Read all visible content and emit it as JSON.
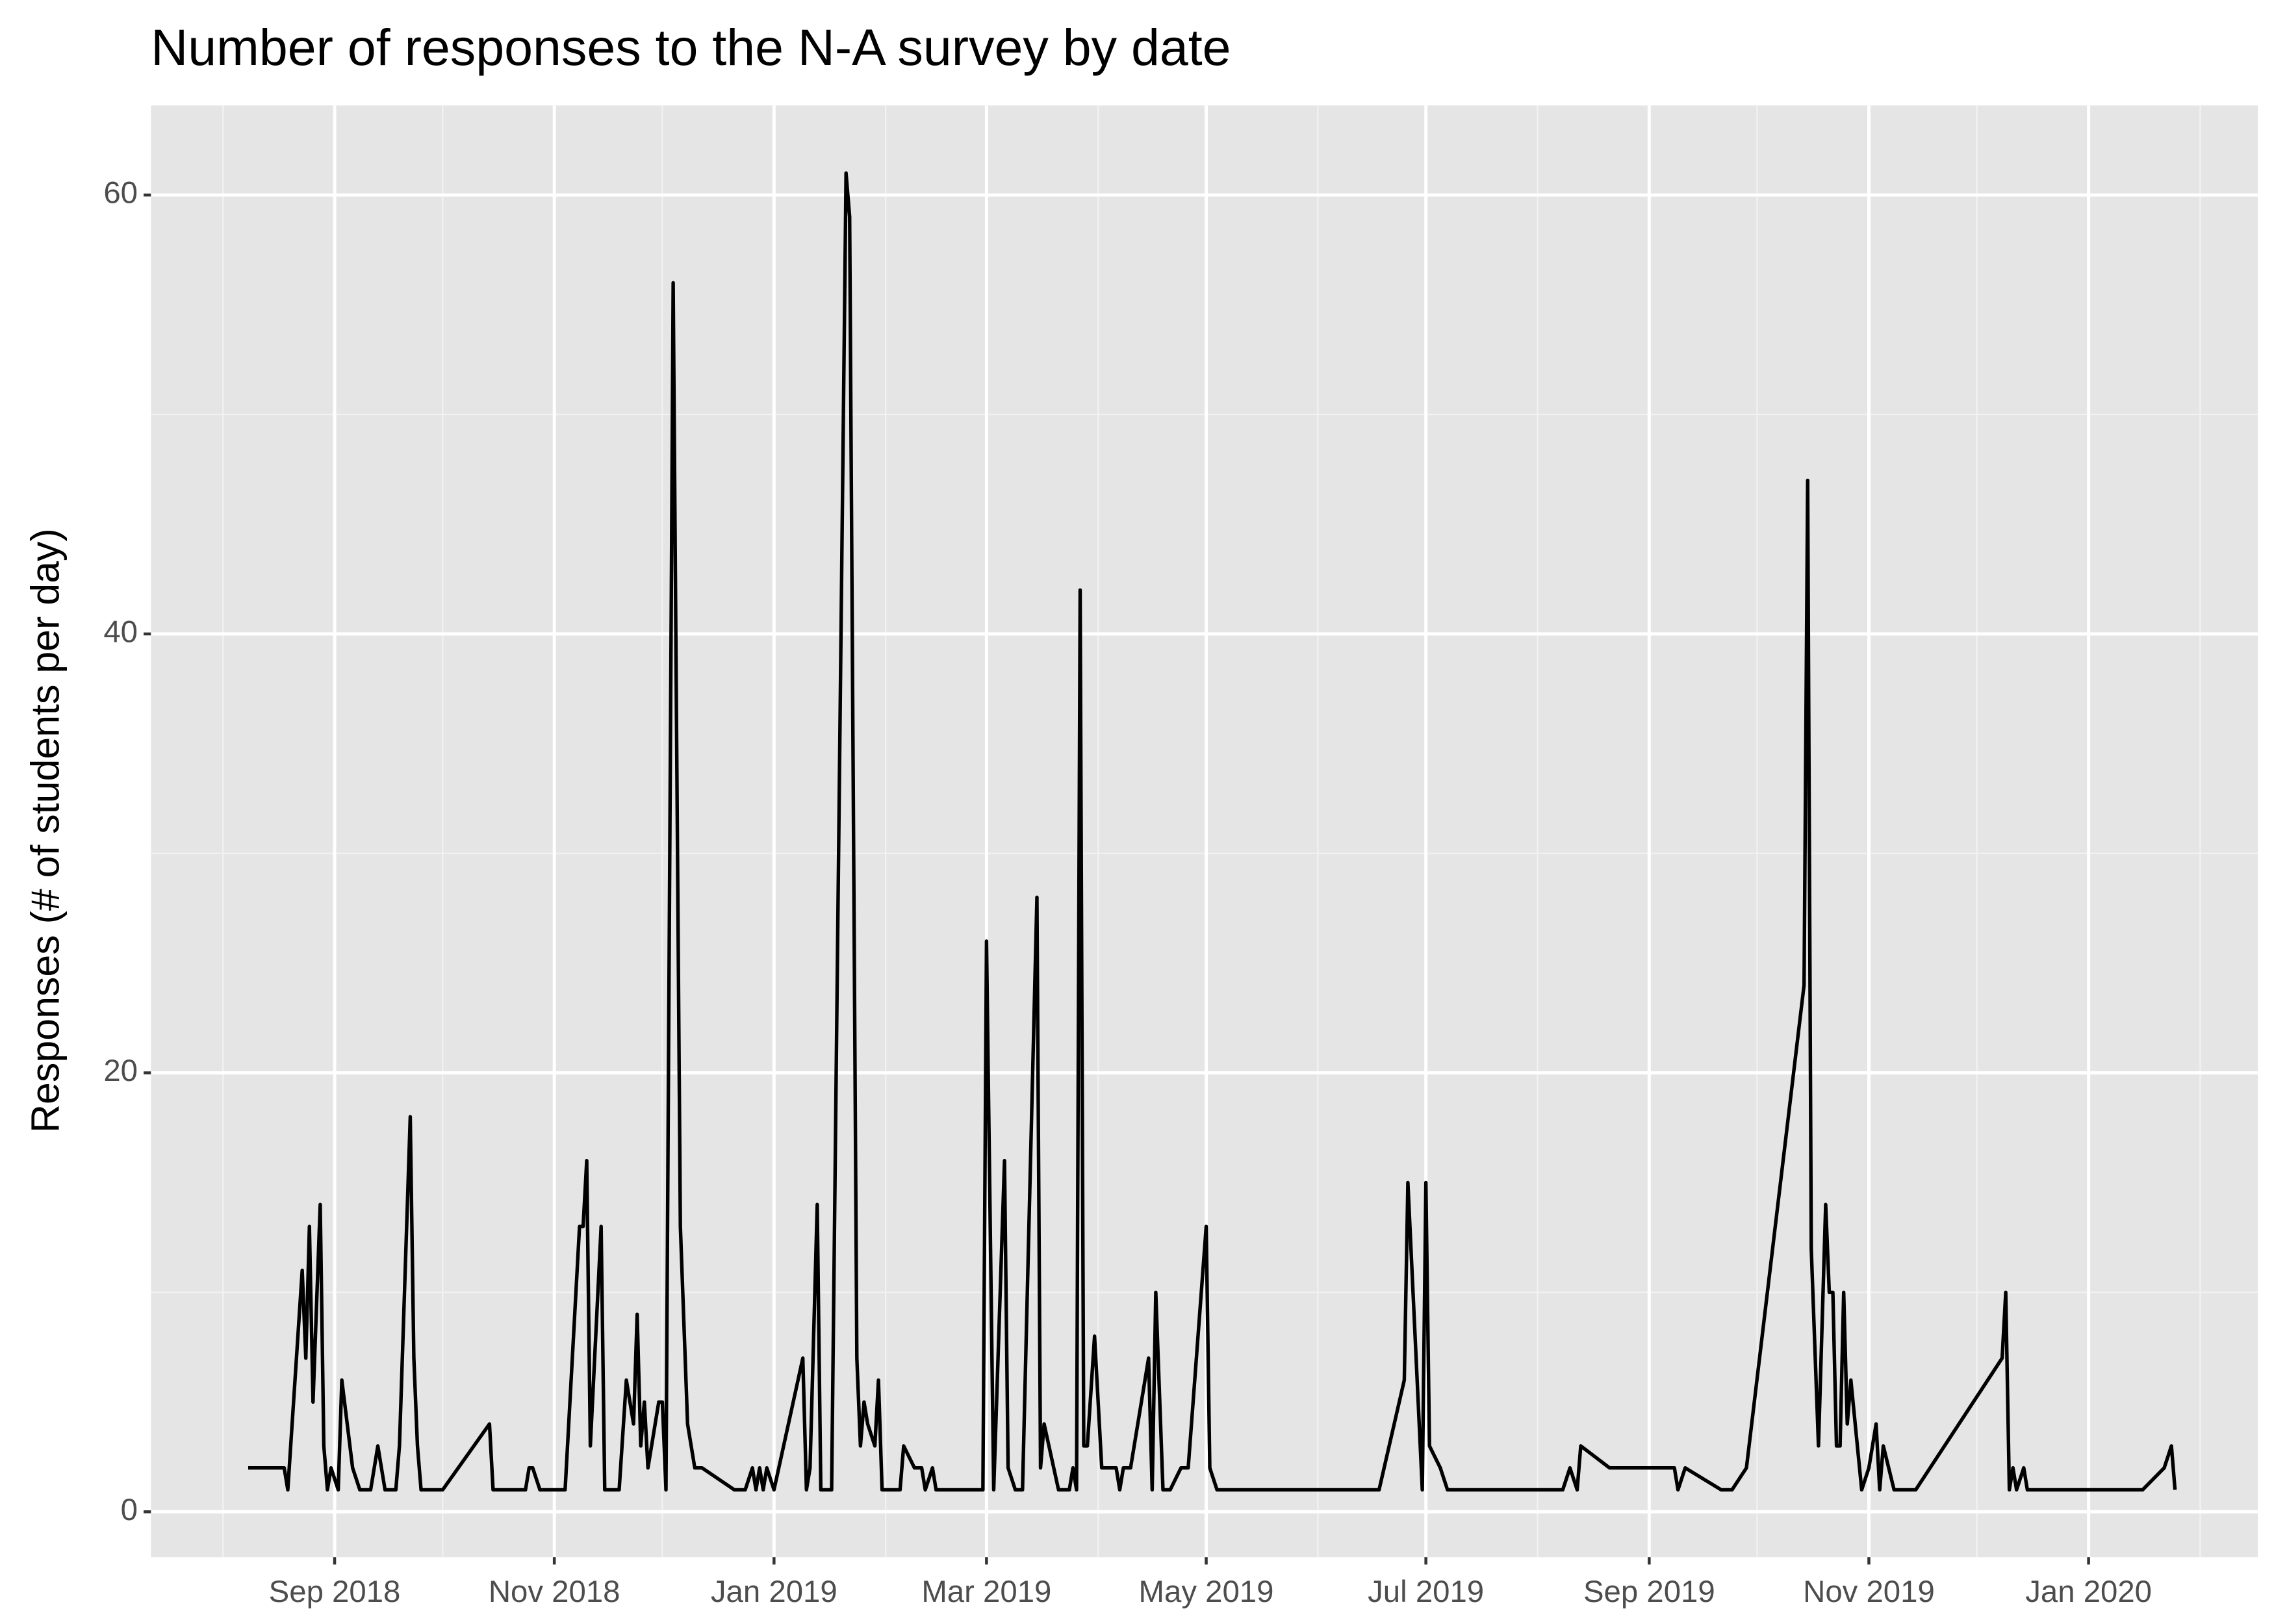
{
  "chart_data": {
    "type": "line",
    "title": "Number of responses to the N-A survey by date",
    "y_label": "Responses (# of students per day)",
    "color": "#000000",
    "background": "#e5e5e5",
    "grid": true,
    "x": [
      "2018-08-08",
      "2018-08-18",
      "2018-08-19",
      "2018-08-23",
      "2018-08-24",
      "2018-08-25",
      "2018-08-26",
      "2018-08-28",
      "2018-08-29",
      "2018-08-30",
      "2018-08-31",
      "2018-09-02",
      "2018-09-03",
      "2018-09-06",
      "2018-09-08",
      "2018-09-11",
      "2018-09-13",
      "2018-09-15",
      "2018-09-18",
      "2018-09-19",
      "2018-09-22",
      "2018-09-23",
      "2018-09-24",
      "2018-09-25",
      "2018-10-01",
      "2018-10-14",
      "2018-10-15",
      "2018-10-24",
      "2018-10-25",
      "2018-10-26",
      "2018-10-28",
      "2018-11-04",
      "2018-11-08",
      "2018-11-09",
      "2018-11-10",
      "2018-11-11",
      "2018-11-14",
      "2018-11-15",
      "2018-11-19",
      "2018-11-21",
      "2018-11-23",
      "2018-11-24",
      "2018-11-25",
      "2018-11-26",
      "2018-11-27",
      "2018-11-30",
      "2018-12-01",
      "2018-12-02",
      "2018-12-04",
      "2018-12-06",
      "2018-12-08",
      "2018-12-10",
      "2018-12-12",
      "2018-12-21",
      "2018-12-24",
      "2018-12-26",
      "2018-12-27",
      "2018-12-28",
      "2018-12-29",
      "2018-12-30",
      "2019-01-01",
      "2019-01-09",
      "2019-01-10",
      "2019-01-11",
      "2019-01-13",
      "2019-01-14",
      "2019-01-17",
      "2019-01-21",
      "2019-01-22",
      "2019-01-24",
      "2019-01-25",
      "2019-01-26",
      "2019-01-27",
      "2019-01-29",
      "2019-01-30",
      "2019-01-31",
      "2019-02-05",
      "2019-02-06",
      "2019-02-09",
      "2019-02-11",
      "2019-02-12",
      "2019-02-14",
      "2019-02-15",
      "2019-02-28",
      "2019-03-01",
      "2019-03-03",
      "2019-03-06",
      "2019-03-07",
      "2019-03-09",
      "2019-03-11",
      "2019-03-15",
      "2019-03-16",
      "2019-03-17",
      "2019-03-21",
      "2019-03-24",
      "2019-03-25",
      "2019-03-26",
      "2019-03-27",
      "2019-03-28",
      "2019-03-29",
      "2019-03-31",
      "2019-04-02",
      "2019-04-06",
      "2019-04-07",
      "2019-04-08",
      "2019-04-10",
      "2019-04-15",
      "2019-04-16",
      "2019-04-17",
      "2019-04-19",
      "2019-04-21",
      "2019-04-24",
      "2019-04-26",
      "2019-05-01",
      "2019-05-02",
      "2019-05-04",
      "2019-06-18",
      "2019-06-25",
      "2019-06-26",
      "2019-06-30",
      "2019-07-01",
      "2019-07-02",
      "2019-07-05",
      "2019-07-07",
      "2019-08-08",
      "2019-08-10",
      "2019-08-12",
      "2019-08-13",
      "2019-08-21",
      "2019-09-08",
      "2019-09-09",
      "2019-09-11",
      "2019-09-21",
      "2019-09-24",
      "2019-09-28",
      "2019-10-14",
      "2019-10-15",
      "2019-10-16",
      "2019-10-18",
      "2019-10-20",
      "2019-10-21",
      "2019-10-22",
      "2019-10-23",
      "2019-10-24",
      "2019-10-25",
      "2019-10-26",
      "2019-10-27",
      "2019-10-30",
      "2019-11-01",
      "2019-11-03",
      "2019-11-04",
      "2019-11-05",
      "2019-11-08",
      "2019-11-14",
      "2019-12-08",
      "2019-12-09",
      "2019-12-10",
      "2019-12-11",
      "2019-12-12",
      "2019-12-14",
      "2019-12-15",
      "2020-01-16",
      "2020-01-22",
      "2020-01-24",
      "2020-01-25"
    ],
    "values": [
      2,
      2,
      1,
      11,
      7,
      13,
      5,
      14,
      3,
      1,
      2,
      1,
      6,
      2,
      1,
      1,
      3,
      1,
      1,
      3,
      18,
      7,
      3,
      1,
      1,
      4,
      1,
      1,
      2,
      2,
      1,
      1,
      13,
      13,
      16,
      3,
      13,
      1,
      1,
      6,
      4,
      9,
      3,
      5,
      2,
      5,
      5,
      1,
      56,
      13,
      4,
      2,
      2,
      1,
      1,
      2,
      1,
      2,
      1,
      2,
      1,
      7,
      1,
      2,
      14,
      1,
      1,
      61,
      59,
      7,
      3,
      5,
      4,
      3,
      6,
      1,
      1,
      3,
      2,
      2,
      1,
      2,
      1,
      1,
      26,
      1,
      16,
      2,
      1,
      1,
      28,
      2,
      4,
      1,
      1,
      2,
      1,
      42,
      3,
      3,
      8,
      2,
      2,
      1,
      2,
      2,
      7,
      1,
      10,
      1,
      1,
      2,
      2,
      13,
      2,
      1,
      1,
      6,
      15,
      1,
      15,
      3,
      2,
      1,
      1,
      2,
      1,
      3,
      2,
      2,
      1,
      2,
      1,
      1,
      2,
      24,
      47,
      12,
      3,
      14,
      10,
      10,
      3,
      3,
      10,
      4,
      6,
      1,
      2,
      4,
      1,
      3,
      1,
      1,
      7,
      10,
      1,
      2,
      1,
      2,
      1,
      1,
      2,
      3,
      1
    ],
    "xlim": [
      "2018-07-12",
      "2020-02-17"
    ],
    "xticks": [
      {
        "value": "2018-09-01",
        "label": "Sep 2018"
      },
      {
        "value": "2018-11-01",
        "label": "Nov 2018"
      },
      {
        "value": "2019-01-01",
        "label": "Jan 2019"
      },
      {
        "value": "2019-03-01",
        "label": "Mar 2019"
      },
      {
        "value": "2019-05-01",
        "label": "May 2019"
      },
      {
        "value": "2019-07-01",
        "label": "Jul 2019"
      },
      {
        "value": "2019-09-01",
        "label": "Sep 2019"
      },
      {
        "value": "2019-11-01",
        "label": "Nov 2019"
      },
      {
        "value": "2020-01-01",
        "label": "Jan 2020"
      }
    ],
    "x_minor_ticks": [
      "2018-08-01",
      "2018-10-01",
      "2018-12-01",
      "2019-02-01",
      "2019-04-01",
      "2019-06-01",
      "2019-08-01",
      "2019-10-01",
      "2019-12-01",
      "2020-02-01"
    ],
    "ylim": [
      -2.07,
      64.08
    ],
    "yticks": [
      0,
      20,
      40,
      60
    ],
    "y_minor_ticks": [
      10,
      30,
      50
    ]
  }
}
